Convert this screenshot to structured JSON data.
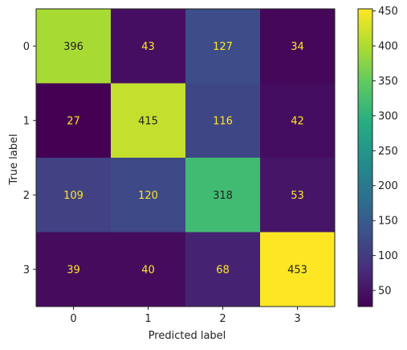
{
  "chart_data": {
    "type": "heatmap",
    "title": "",
    "xlabel": "Predicted label",
    "ylabel": "True label",
    "x_categories": [
      "0",
      "1",
      "2",
      "3"
    ],
    "y_categories": [
      "0",
      "1",
      "2",
      "3"
    ],
    "matrix": [
      [
        396,
        43,
        127,
        34
      ],
      [
        27,
        415,
        116,
        42
      ],
      [
        109,
        120,
        318,
        53
      ],
      [
        39,
        40,
        68,
        453
      ]
    ],
    "colormap": "viridis",
    "color_range": [
      27,
      453
    ],
    "colorbar_ticks": [
      50,
      100,
      150,
      200,
      250,
      300,
      350,
      400,
      450
    ],
    "text_color_dark_cells": "#fde725",
    "text_color_light_cells": "#222222",
    "grid": false,
    "colorbar": true
  }
}
